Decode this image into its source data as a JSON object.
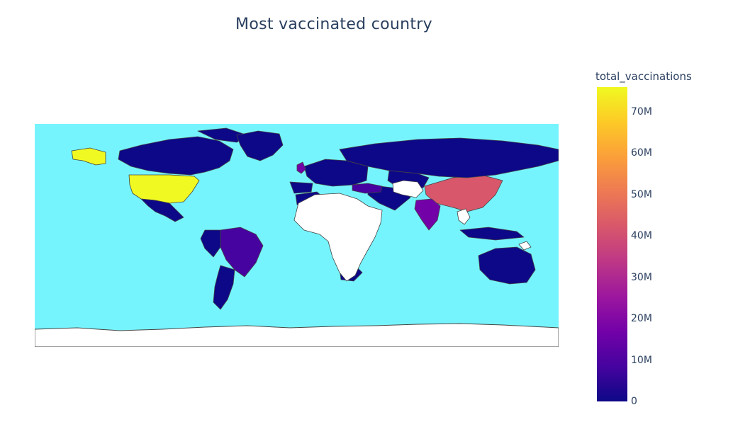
{
  "title": "Most vaccinated country",
  "colors": {
    "ocean": "#76f4fe",
    "no_data": "#ffffff",
    "border": "#444444",
    "scale": [
      "#0d0887",
      "#46039f",
      "#7201a8",
      "#9c179e",
      "#bd3786",
      "#d8576b",
      "#ed7953",
      "#fb9f3a",
      "#fdca26",
      "#f0f921"
    ]
  },
  "colorbar": {
    "title": "total_vaccinations",
    "min": 0,
    "max": 76000000,
    "ticks": [
      {
        "value": 70000000,
        "label": "70M"
      },
      {
        "value": 60000000,
        "label": "60M"
      },
      {
        "value": 50000000,
        "label": "50M"
      },
      {
        "value": 40000000,
        "label": "40M"
      },
      {
        "value": 30000000,
        "label": "30M"
      },
      {
        "value": 20000000,
        "label": "20M"
      },
      {
        "value": 10000000,
        "label": "10M"
      },
      {
        "value": 0,
        "label": "0"
      }
    ]
  },
  "chart_data": {
    "type": "choropleth",
    "projection": "equirectangular",
    "variable": "total_vaccinations",
    "regions": [
      {
        "name": "United States",
        "value": 76000000
      },
      {
        "name": "China",
        "value": 45000000
      },
      {
        "name": "India",
        "value": 15000000
      },
      {
        "name": "Brazil",
        "value": 8000000
      },
      {
        "name": "United Kingdom",
        "value": 14000000
      },
      {
        "name": "Russia",
        "value": 3000000
      },
      {
        "name": "Canada",
        "value": 1300000
      },
      {
        "name": "Mexico",
        "value": 2000000
      },
      {
        "name": "Australia",
        "value": 0
      },
      {
        "name": "Greenland",
        "value": 0
      },
      {
        "name": "Kazakhstan",
        "value": 0
      },
      {
        "name": "Argentina",
        "value": 1000000
      },
      {
        "name": "Peru",
        "value": 0
      },
      {
        "name": "South Africa",
        "value": 0
      },
      {
        "name": "Indonesia",
        "value": 1000000
      },
      {
        "name": "Turkey",
        "value": 6000000
      },
      {
        "name": "Algeria",
        "value": 0
      }
    ]
  }
}
